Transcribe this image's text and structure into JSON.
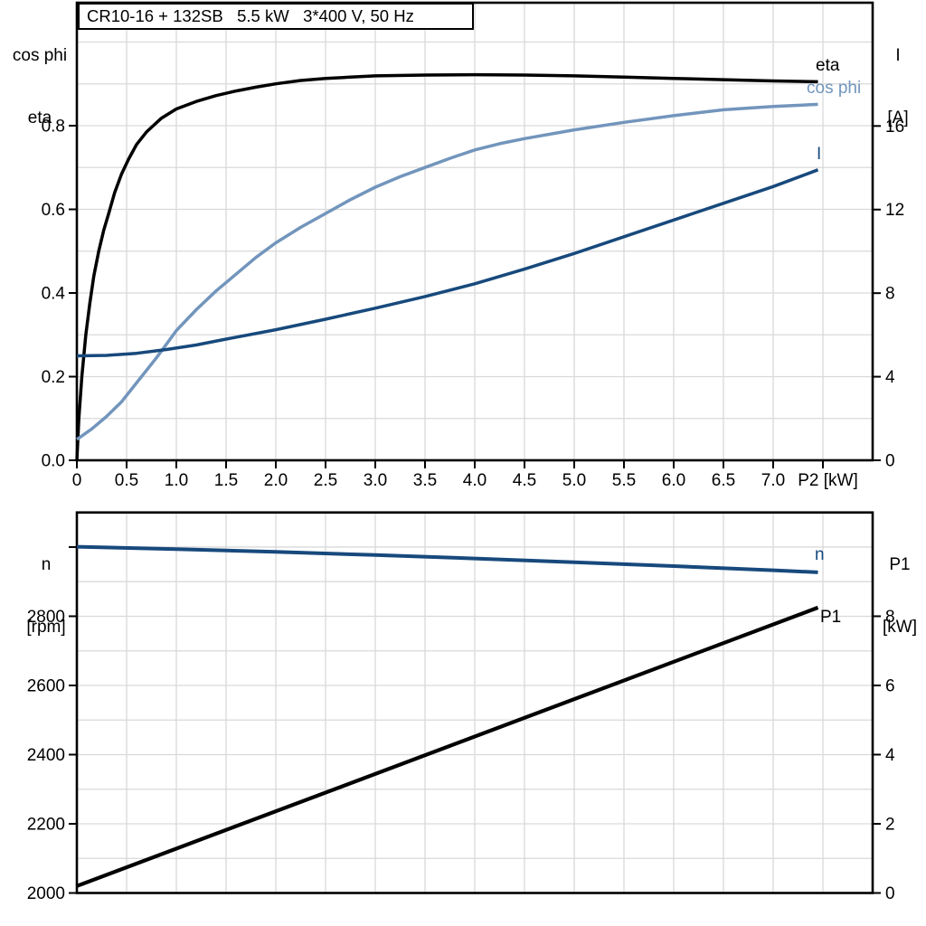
{
  "title": "CR10-16 + 132SB   5.5 kW   3*400 V, 50 Hz",
  "colors": {
    "black": "#000000",
    "dark_blue": "#17497C",
    "light_blue": "#7295BC",
    "grid": "#D9D9D9",
    "axis": "#000000"
  },
  "axis_titles": {
    "top_left": [
      "cos phi",
      "eta"
    ],
    "top_right": [
      "I",
      "[A]"
    ],
    "bottom_left": [
      "n",
      "[rpm]"
    ],
    "bottom_right": [
      "P1",
      "[kW]"
    ]
  },
  "chart_data": [
    {
      "type": "line",
      "title": "CR10-16 + 132SB   5.5 kW   3*400 V, 50 Hz",
      "xlabel": "P2 [kW]",
      "ylabel_left": "cos phi / eta",
      "ylabel_right": "I [A]",
      "grid": true,
      "x_axis": {
        "min": 0,
        "max": 8,
        "grid_step": 0.5,
        "label": "P2 [kW]",
        "label_at": 7.55,
        "ticks": [
          {
            "v": 0,
            "t": "0"
          },
          {
            "v": 0.5,
            "t": "0.5"
          },
          {
            "v": 1,
            "t": "1.0"
          },
          {
            "v": 1.5,
            "t": "1.5"
          },
          {
            "v": 2,
            "t": "2.0"
          },
          {
            "v": 2.5,
            "t": "2.5"
          },
          {
            "v": 3,
            "t": "3.0"
          },
          {
            "v": 3.5,
            "t": "3.5"
          },
          {
            "v": 4,
            "t": "4.0"
          },
          {
            "v": 4.5,
            "t": "4.5"
          },
          {
            "v": 5,
            "t": "5.0"
          },
          {
            "v": 5.5,
            "t": "5.5"
          },
          {
            "v": 6,
            "t": "6.0"
          },
          {
            "v": 6.5,
            "t": "6.5"
          },
          {
            "v": 7,
            "t": "7.0"
          },
          {
            "v": 7.5,
            "t": ""
          }
        ]
      },
      "y_left": {
        "min": 0,
        "max": 1.094,
        "grid_step": 0.1,
        "ticks": [
          {
            "v": 0,
            "t": "0.0"
          },
          {
            "v": 0.2,
            "t": "0.2"
          },
          {
            "v": 0.4,
            "t": "0.4"
          },
          {
            "v": 0.6,
            "t": "0.6"
          },
          {
            "v": 0.8,
            "t": "0.8"
          }
        ]
      },
      "y_right": {
        "min": 0,
        "max": 21.9,
        "ticks": [
          {
            "v": 0,
            "t": "0"
          },
          {
            "v": 4,
            "t": "4"
          },
          {
            "v": 8,
            "t": "8"
          },
          {
            "v": 12,
            "t": "12"
          },
          {
            "v": 16,
            "t": "16"
          }
        ]
      },
      "series": [
        {
          "name": "eta",
          "axis": "left",
          "color": "black",
          "width": 3.5,
          "x": [
            0,
            0.02,
            0.05,
            0.09,
            0.13,
            0.17,
            0.22,
            0.27,
            0.32,
            0.38,
            0.45,
            0.52,
            0.6,
            0.7,
            0.85,
            1.0,
            1.2,
            1.4,
            1.6,
            1.8,
            2.0,
            2.25,
            2.5,
            2.75,
            3.0,
            3.5,
            4.0,
            4.5,
            5.0,
            5.5,
            6.0,
            6.5,
            7.0,
            7.45
          ],
          "y": [
            0,
            0.1,
            0.2,
            0.3,
            0.375,
            0.44,
            0.5,
            0.55,
            0.59,
            0.64,
            0.685,
            0.72,
            0.755,
            0.785,
            0.818,
            0.84,
            0.858,
            0.872,
            0.883,
            0.892,
            0.9,
            0.908,
            0.913,
            0.916,
            0.919,
            0.921,
            0.922,
            0.921,
            0.919,
            0.916,
            0.913,
            0.91,
            0.907,
            0.905
          ]
        },
        {
          "name": "cos phi",
          "axis": "left",
          "color": "light_blue",
          "width": 3.5,
          "x": [
            0,
            0.15,
            0.3,
            0.45,
            0.6,
            0.8,
            1.0,
            1.2,
            1.4,
            1.6,
            1.8,
            2.0,
            2.25,
            2.5,
            2.75,
            3.0,
            3.25,
            3.5,
            3.75,
            4.0,
            4.25,
            4.5,
            5.0,
            5.5,
            6.0,
            6.5,
            7.0,
            7.45
          ],
          "y": [
            0.05,
            0.075,
            0.105,
            0.14,
            0.185,
            0.245,
            0.31,
            0.36,
            0.405,
            0.445,
            0.485,
            0.52,
            0.557,
            0.59,
            0.623,
            0.653,
            0.678,
            0.7,
            0.722,
            0.742,
            0.757,
            0.769,
            0.79,
            0.808,
            0.824,
            0.838,
            0.846,
            0.851
          ]
        },
        {
          "name": "I",
          "axis": "right",
          "color": "dark_blue",
          "width": 3.5,
          "x": [
            0,
            0.3,
            0.6,
            0.9,
            1.2,
            1.5,
            2.0,
            2.5,
            3.0,
            3.5,
            4.0,
            4.5,
            5.0,
            5.5,
            6.0,
            6.5,
            7.0,
            7.45
          ],
          "y": [
            5.0,
            5.02,
            5.12,
            5.3,
            5.52,
            5.8,
            6.25,
            6.75,
            7.28,
            7.84,
            8.45,
            9.15,
            9.9,
            10.7,
            11.5,
            12.3,
            13.1,
            13.9
          ]
        }
      ]
    },
    {
      "type": "line",
      "title": "",
      "xlabel": "",
      "ylabel_left": "n [rpm]",
      "ylabel_right": "P1 [kW]",
      "grid": true,
      "x_axis": {
        "min": 0,
        "max": 8,
        "grid_step": 0.5,
        "label": "",
        "label_at": 7.55,
        "ticks": []
      },
      "y_left": {
        "min": 2000,
        "max": 3100,
        "grid_step": 100,
        "ticks": [
          {
            "v": 2000,
            "t": "2000"
          },
          {
            "v": 2200,
            "t": "2200"
          },
          {
            "v": 2400,
            "t": "2400"
          },
          {
            "v": 2600,
            "t": "2600"
          },
          {
            "v": 2800,
            "t": "2800"
          },
          {
            "v": 3000,
            "t": ""
          }
        ]
      },
      "y_right": {
        "min": 0,
        "max": 11.0,
        "ticks": [
          {
            "v": 0,
            "t": "0"
          },
          {
            "v": 2,
            "t": "2"
          },
          {
            "v": 4,
            "t": "4"
          },
          {
            "v": 6,
            "t": "6"
          },
          {
            "v": 8,
            "t": "8"
          }
        ]
      },
      "series": [
        {
          "name": "n",
          "axis": "left",
          "color": "dark_blue",
          "width": 4,
          "x": [
            0,
            1,
            2,
            3,
            4,
            5,
            6,
            7,
            7.45
          ],
          "y": [
            3001,
            2994,
            2986,
            2977,
            2967,
            2956,
            2945,
            2933,
            2927
          ]
        },
        {
          "name": "P1",
          "axis": "right",
          "color": "black",
          "width": 4.2,
          "x": [
            0,
            7.45
          ],
          "y": [
            0.2,
            8.25
          ]
        }
      ]
    }
  ]
}
